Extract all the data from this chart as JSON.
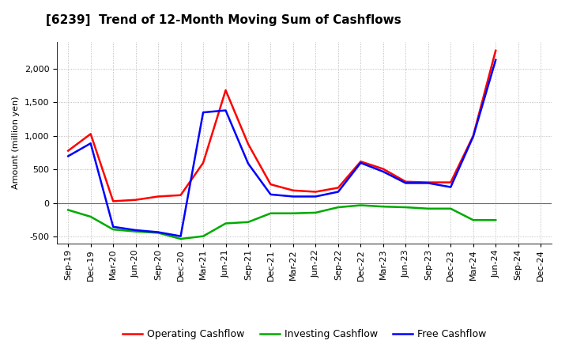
{
  "title": "[6239]  Trend of 12-Month Moving Sum of Cashflows",
  "ylabel": "Amount (million yen)",
  "x_labels": [
    "Sep-19",
    "Dec-19",
    "Mar-20",
    "Jun-20",
    "Sep-20",
    "Dec-20",
    "Mar-21",
    "Jun-21",
    "Sep-21",
    "Dec-21",
    "Mar-22",
    "Jun-22",
    "Sep-22",
    "Dec-22",
    "Mar-23",
    "Jun-23",
    "Sep-23",
    "Dec-23",
    "Mar-24",
    "Jun-24",
    "Sep-24",
    "Dec-24"
  ],
  "operating": [
    780,
    1030,
    30,
    50,
    100,
    120,
    600,
    1680,
    880,
    280,
    190,
    170,
    230,
    620,
    510,
    320,
    310,
    310,
    1000,
    2270,
    null,
    null
  ],
  "investing": [
    -100,
    -200,
    -390,
    -420,
    -440,
    -530,
    -490,
    -300,
    -280,
    -150,
    -150,
    -140,
    -60,
    -30,
    -50,
    -60,
    -80,
    -80,
    -250,
    -250,
    null,
    null
  ],
  "free": [
    700,
    890,
    -350,
    -400,
    -430,
    -490,
    1350,
    1380,
    590,
    130,
    100,
    100,
    170,
    600,
    470,
    300,
    300,
    240,
    990,
    2130,
    null,
    null
  ],
  "operating_color": "#FF0000",
  "investing_color": "#00AA00",
  "free_color": "#0000FF",
  "ylim": [
    -600,
    2400
  ],
  "yticks": [
    -500,
    0,
    500,
    1000,
    1500,
    2000
  ],
  "background_color": "#FFFFFF",
  "grid_color": "#AAAAAA",
  "title_fontsize": 11,
  "legend_fontsize": 9,
  "axis_fontsize": 8,
  "linewidth": 1.8
}
